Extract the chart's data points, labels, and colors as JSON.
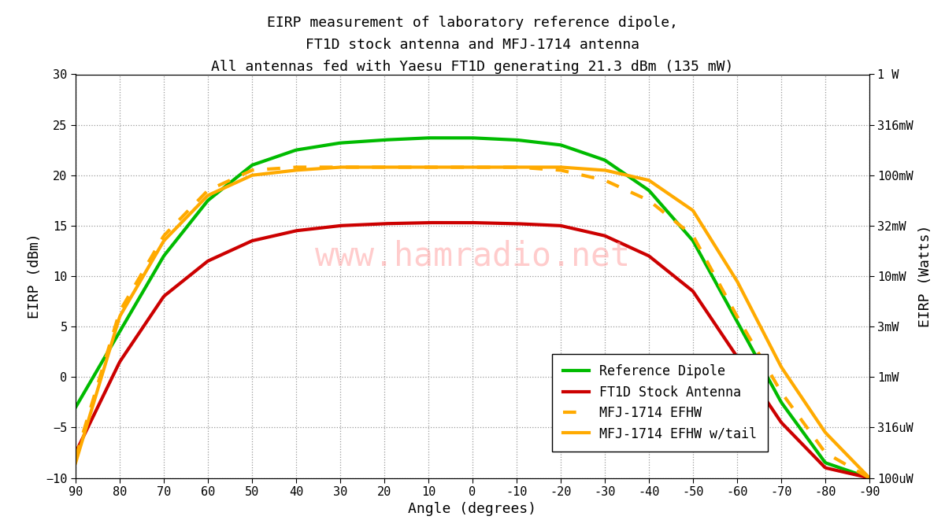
{
  "title_line1": "EIRP measurement of laboratory reference dipole,",
  "title_line2": "FT1D stock antenna and MFJ-1714 antenna",
  "title_line3": "All antennas fed with Yaesu FT1D generating 21.3 dBm (135 mW)",
  "xlabel": "Angle (degrees)",
  "ylabel_left": "EIRP (dBm)",
  "ylabel_right": "EIRP (Watts)",
  "xlim": [
    90,
    -90
  ],
  "ylim": [
    -10,
    30
  ],
  "xticks": [
    90,
    80,
    70,
    60,
    50,
    40,
    30,
    20,
    10,
    0,
    -10,
    -20,
    -30,
    -40,
    -50,
    -60,
    -70,
    -80,
    -90
  ],
  "yticks_left": [
    -10,
    -5,
    0,
    5,
    10,
    15,
    20,
    25,
    30
  ],
  "right_axis_ticks_dbm": [
    -10,
    -5,
    0,
    5,
    10,
    15,
    20,
    25,
    30
  ],
  "right_axis_labels": [
    "100uW",
    "316uW",
    "1mW",
    "3mW",
    "10mW",
    "32mW",
    "100mW",
    "316mW",
    "1 W"
  ],
  "watermark": "www.hamradio.net",
  "watermark_color": "#ffaaaa",
  "background_color": "#ffffff",
  "grid_color": "#999999",
  "series": [
    {
      "name": "Reference Dipole",
      "color": "#00bb00",
      "linestyle": "solid",
      "linewidth": 3,
      "angles": [
        90,
        80,
        70,
        60,
        50,
        40,
        30,
        20,
        10,
        0,
        -10,
        -20,
        -30,
        -40,
        -50,
        -60,
        -70,
        -80,
        -90
      ],
      "values": [
        -3.0,
        4.5,
        12.0,
        17.5,
        21.0,
        22.5,
        23.2,
        23.5,
        23.7,
        23.7,
        23.5,
        23.0,
        21.5,
        18.5,
        13.5,
        5.5,
        -2.5,
        -8.5,
        -10.0
      ]
    },
    {
      "name": "FT1D Stock Antenna",
      "color": "#cc0000",
      "linestyle": "solid",
      "linewidth": 3,
      "angles": [
        90,
        80,
        70,
        60,
        50,
        40,
        30,
        20,
        10,
        0,
        -10,
        -20,
        -30,
        -40,
        -50,
        -60,
        -70,
        -80,
        -90
      ],
      "values": [
        -7.5,
        1.5,
        8.0,
        11.5,
        13.5,
        14.5,
        15.0,
        15.2,
        15.3,
        15.3,
        15.2,
        15.0,
        14.0,
        12.0,
        8.5,
        2.0,
        -4.5,
        -9.0,
        -10.0
      ]
    },
    {
      "name": "MFJ-1714 EFHW",
      "color": "#ffaa00",
      "linestyle": "dotted",
      "linewidth": 3,
      "angles": [
        90,
        80,
        70,
        60,
        50,
        40,
        30,
        20,
        10,
        0,
        -10,
        -20,
        -30,
        -40,
        -50,
        -60,
        -70,
        -80,
        -90
      ],
      "values": [
        -8.0,
        6.5,
        14.0,
        18.5,
        20.5,
        20.8,
        20.8,
        20.8,
        20.8,
        20.8,
        20.8,
        20.5,
        19.5,
        17.5,
        14.0,
        6.0,
        -1.5,
        -7.5,
        -10.0
      ]
    },
    {
      "name": "MFJ-1714 EFHW w/tail",
      "color": "#ffaa00",
      "linestyle": "solid",
      "linewidth": 3,
      "angles": [
        90,
        80,
        70,
        60,
        50,
        40,
        30,
        20,
        10,
        0,
        -10,
        -20,
        -30,
        -40,
        -50,
        -60,
        -70,
        -80,
        -90
      ],
      "values": [
        -8.5,
        6.0,
        13.5,
        18.0,
        20.0,
        20.5,
        20.8,
        20.8,
        20.8,
        20.8,
        20.8,
        20.8,
        20.5,
        19.5,
        16.5,
        9.5,
        1.0,
        -5.5,
        -10.0
      ]
    }
  ]
}
